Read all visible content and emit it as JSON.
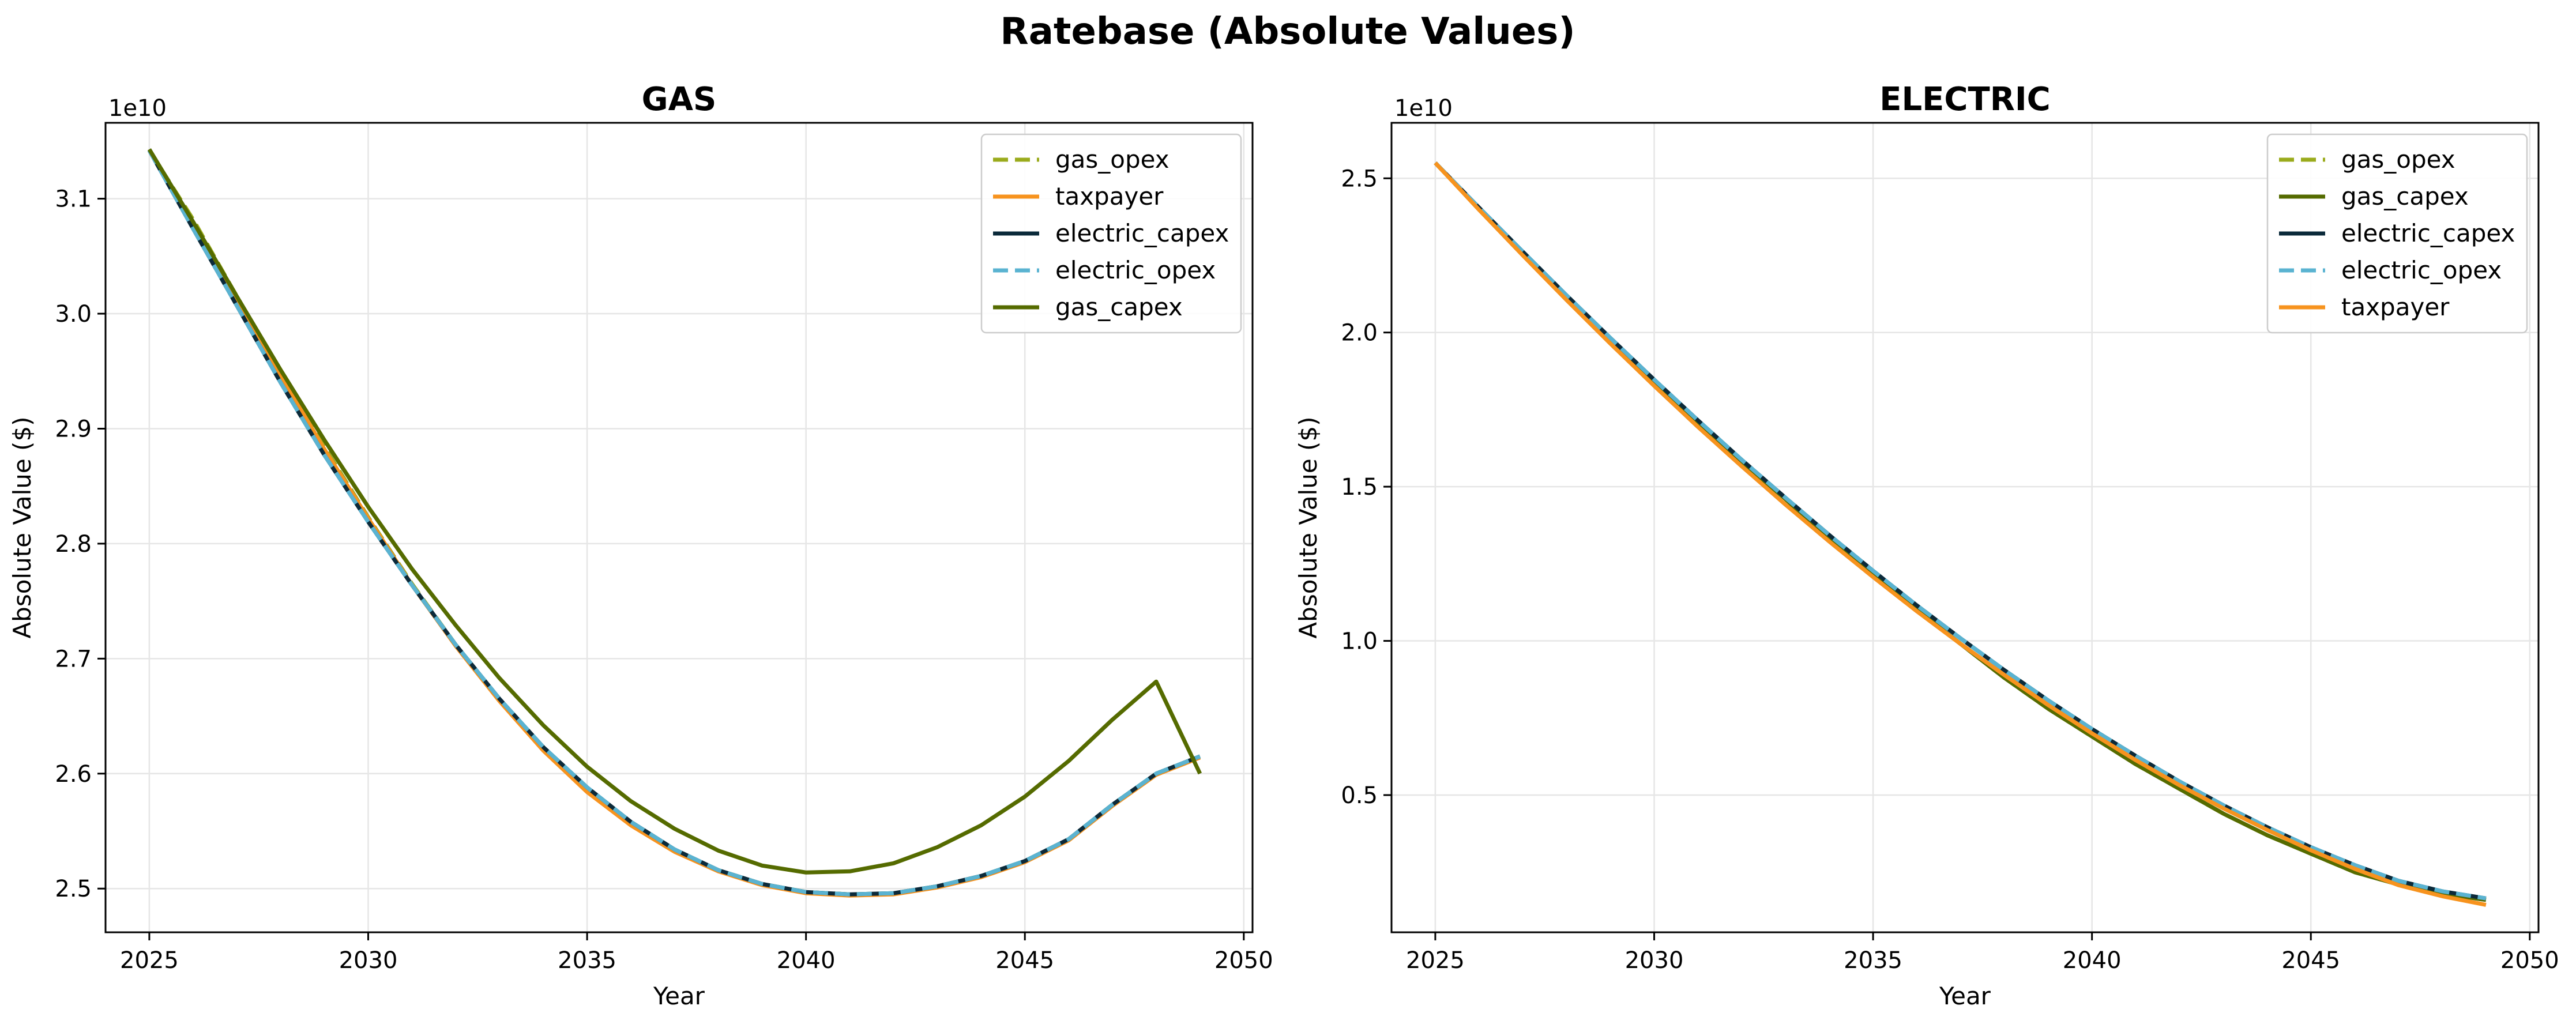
{
  "figure": {
    "suptitle": "Ratebase (Absolute Values)"
  },
  "colors": {
    "gas_opex": "#9aab1c",
    "taxpayer": "#f7931e",
    "electric_capex": "#0b2a3a",
    "electric_opex": "#5ab3d1",
    "gas_capex": "#556b00",
    "grid": "#e6e6e6"
  },
  "chart_data": [
    {
      "type": "line",
      "title": "GAS",
      "xlabel": "Year",
      "ylabel": "Absolute Value ($)",
      "y_offset_label": "1e10",
      "xlim": [
        2024,
        2050.2
      ],
      "ylim": [
        24.62,
        31.66
      ],
      "xticks": [
        2025,
        2030,
        2035,
        2040,
        2045,
        2050
      ],
      "yticks": [
        25.0,
        26.0,
        27.0,
        28.0,
        29.0,
        30.0,
        31.0
      ],
      "ytick_labels": [
        "2.5",
        "2.6",
        "2.7",
        "2.8",
        "2.9",
        "3.0",
        "3.1"
      ],
      "grid": true,
      "legend_position": "upper right",
      "x": [
        2025,
        2026,
        2027,
        2028,
        2029,
        2030,
        2031,
        2032,
        2033,
        2034,
        2035,
        2036,
        2037,
        2038,
        2039,
        2040,
        2041,
        2042,
        2043,
        2044,
        2045,
        2046,
        2047,
        2048,
        2049
      ],
      "series": [
        {
          "name": "gas_opex",
          "style": "dashed",
          "values": [
            31.42,
            30.82,
            30.15,
            29.49,
            28.84,
            28.23,
            27.65,
            27.12,
            26.64,
            26.21,
            25.85,
            25.56,
            25.33,
            25.16,
            25.04,
            24.97,
            24.95,
            24.96,
            25.02,
            25.11,
            25.24,
            25.43,
            25.73,
            26.0,
            26.15
          ]
        },
        {
          "name": "taxpayer",
          "style": "solid",
          "values": [
            31.42,
            30.79,
            30.12,
            29.46,
            28.82,
            28.22,
            27.64,
            27.11,
            26.63,
            26.2,
            25.84,
            25.55,
            25.32,
            25.15,
            25.03,
            24.96,
            24.94,
            24.95,
            25.01,
            25.1,
            25.23,
            25.42,
            25.72,
            25.99,
            26.14
          ]
        },
        {
          "name": "electric_capex",
          "style": "solid",
          "values": [
            31.42,
            30.74,
            30.07,
            29.4,
            28.77,
            28.19,
            27.64,
            27.12,
            26.65,
            26.23,
            25.88,
            25.58,
            25.34,
            25.16,
            25.04,
            24.97,
            24.95,
            24.96,
            25.02,
            25.11,
            25.24,
            25.43,
            25.73,
            26.0,
            26.15
          ]
        },
        {
          "name": "electric_opex",
          "style": "dashed",
          "values": [
            31.42,
            30.74,
            30.07,
            29.4,
            28.77,
            28.19,
            27.64,
            27.12,
            26.65,
            26.23,
            25.88,
            25.58,
            25.34,
            25.16,
            25.04,
            24.97,
            24.95,
            24.96,
            25.02,
            25.11,
            25.24,
            25.43,
            25.73,
            26.0,
            26.15
          ]
        },
        {
          "name": "gas_capex",
          "style": "solid",
          "values": [
            31.43,
            30.8,
            30.15,
            29.51,
            28.9,
            28.32,
            27.78,
            27.29,
            26.83,
            26.42,
            26.06,
            25.76,
            25.52,
            25.33,
            25.2,
            25.14,
            25.15,
            25.22,
            25.36,
            25.55,
            25.8,
            26.11,
            26.47,
            26.8,
            26.0
          ]
        }
      ]
    },
    {
      "type": "line",
      "title": "ELECTRIC",
      "xlabel": "Year",
      "ylabel": "Absolute Value ($)",
      "y_offset_label": "1e10",
      "xlim": [
        2024,
        2050.2
      ],
      "ylim": [
        0.55,
        26.8
      ],
      "xticks": [
        2025,
        2030,
        2035,
        2040,
        2045,
        2050
      ],
      "yticks": [
        5.0,
        10.0,
        15.0,
        20.0,
        25.0
      ],
      "ytick_labels": [
        "0.5",
        "1.0",
        "1.5",
        "2.0",
        "2.5"
      ],
      "grid": true,
      "legend_position": "upper right",
      "x": [
        2025,
        2026,
        2027,
        2028,
        2029,
        2030,
        2031,
        2032,
        2033,
        2034,
        2035,
        2036,
        2037,
        2038,
        2039,
        2040,
        2041,
        2042,
        2043,
        2044,
        2045,
        2046,
        2047,
        2048,
        2049
      ],
      "series": [
        {
          "name": "gas_opex",
          "style": "dashed",
          "values": [
            25.5,
            24.0,
            22.6,
            21.1,
            19.8,
            18.4,
            17.1,
            15.8,
            14.6,
            13.3,
            12.2,
            11.0,
            9.9,
            8.8,
            7.8,
            6.9,
            6.0,
            5.2,
            4.4,
            3.7,
            3.1,
            2.5,
            2.1,
            1.8,
            1.6
          ]
        },
        {
          "name": "gas_capex",
          "style": "solid",
          "values": [
            25.5,
            24.0,
            22.6,
            21.1,
            19.8,
            18.4,
            17.1,
            15.8,
            14.6,
            13.3,
            12.2,
            11.0,
            9.9,
            8.8,
            7.8,
            6.9,
            6.0,
            5.2,
            4.4,
            3.7,
            3.1,
            2.5,
            2.1,
            1.8,
            1.6
          ]
        },
        {
          "name": "electric_capex",
          "style": "solid",
          "values": [
            25.5,
            24.05,
            22.62,
            21.2,
            19.82,
            18.47,
            17.15,
            15.87,
            14.64,
            13.43,
            12.27,
            11.15,
            10.08,
            9.05,
            8.07,
            7.14,
            6.27,
            5.44,
            4.67,
            3.96,
            3.31,
            2.73,
            2.22,
            1.88,
            1.65
          ]
        },
        {
          "name": "electric_opex",
          "style": "dashed",
          "values": [
            25.5,
            24.05,
            22.62,
            21.2,
            19.82,
            18.47,
            17.15,
            15.87,
            14.64,
            13.43,
            12.27,
            11.15,
            10.08,
            9.05,
            8.07,
            7.14,
            6.27,
            5.44,
            4.67,
            3.96,
            3.31,
            2.73,
            2.22,
            1.88,
            1.65
          ]
        },
        {
          "name": "taxpayer",
          "style": "solid",
          "values": [
            25.5,
            23.98,
            22.5,
            21.05,
            19.64,
            18.27,
            16.94,
            15.66,
            14.42,
            13.22,
            12.07,
            10.96,
            9.9,
            8.89,
            7.92,
            7.0,
            6.13,
            5.32,
            4.57,
            3.87,
            3.21,
            2.61,
            2.08,
            1.72,
            1.44
          ]
        }
      ]
    }
  ]
}
